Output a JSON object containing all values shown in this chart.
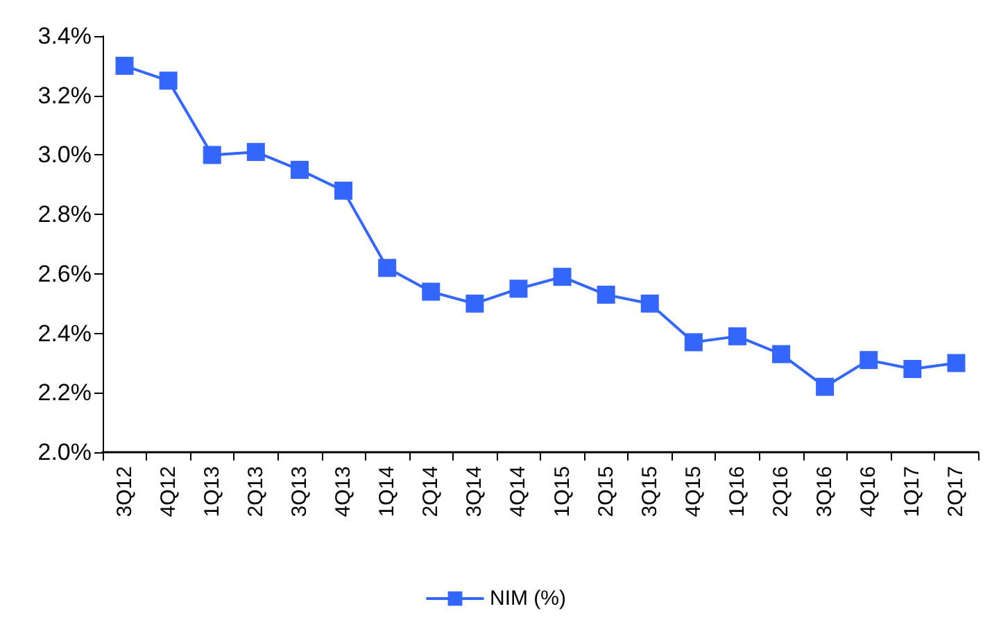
{
  "chart_data": {
    "type": "line",
    "categories": [
      "3Q12",
      "4Q12",
      "1Q13",
      "2Q13",
      "3Q13",
      "4Q13",
      "1Q14",
      "2Q14",
      "3Q14",
      "4Q14",
      "1Q15",
      "2Q15",
      "3Q15",
      "4Q15",
      "1Q16",
      "2Q16",
      "3Q16",
      "4Q16",
      "1Q17",
      "2Q17"
    ],
    "series": [
      {
        "name": "NIM (%)",
        "color": "#3366ff",
        "values": [
          3.3,
          3.25,
          3.0,
          3.01,
          2.95,
          2.88,
          2.62,
          2.54,
          2.5,
          2.55,
          2.59,
          2.53,
          2.5,
          2.37,
          2.39,
          2.33,
          2.22,
          2.31,
          2.28,
          2.3
        ]
      }
    ],
    "ylim": [
      2.0,
      3.4
    ],
    "yticks": [
      {
        "value": 2.0,
        "label": "2.0%"
      },
      {
        "value": 2.2,
        "label": "2.2%"
      },
      {
        "value": 2.4,
        "label": "2.4%"
      },
      {
        "value": 2.6,
        "label": "2.6%"
      },
      {
        "value": 2.8,
        "label": "2.8%"
      },
      {
        "value": 3.0,
        "label": "3.0%"
      },
      {
        "value": 3.2,
        "label": "3.2%"
      },
      {
        "value": 3.4,
        "label": "3.4%"
      }
    ],
    "grid": false,
    "legend": "bottom",
    "marker": "square",
    "line_style": "solid"
  }
}
